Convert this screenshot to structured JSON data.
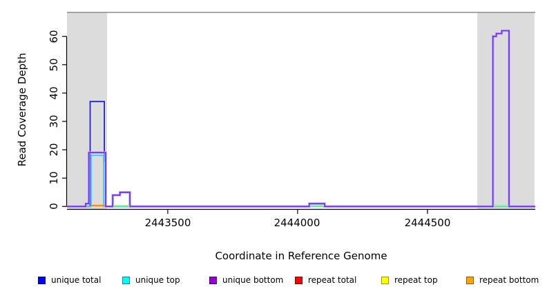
{
  "figure": {
    "background": "#FFFFFF"
  },
  "chart_data": {
    "type": "line",
    "subtype": "step-coverage",
    "title": "",
    "xlabel": "Coordinate in Reference Genome",
    "ylabel": "Read Coverage Depth",
    "xlim": [
      2443112,
      2444915
    ],
    "ylim": [
      0,
      69
    ],
    "grid": "off",
    "legend_position": "bottom",
    "x_ticks": [
      {
        "value": 2443500,
        "label": "2443500"
      },
      {
        "value": 2444000,
        "label": "2444000"
      },
      {
        "value": 2444500,
        "label": "2444500"
      }
    ],
    "y_ticks": [
      {
        "value": 0,
        "label": "0"
      },
      {
        "value": 10,
        "label": "10"
      },
      {
        "value": 20,
        "label": "20"
      },
      {
        "value": 30,
        "label": "30"
      },
      {
        "value": 40,
        "label": "40"
      },
      {
        "value": 50,
        "label": "50"
      },
      {
        "value": 60,
        "label": "60"
      }
    ],
    "shaded_regions": [
      {
        "x0": 2443112,
        "x1": 2443266,
        "color": "#DCDCDC"
      },
      {
        "x0": 2444692,
        "x1": 2444912,
        "color": "#DCDCDC"
      }
    ],
    "series": [
      {
        "name": "unique total",
        "color": "#2222DD",
        "width": 1.8,
        "points": [
          [
            2443112,
            0
          ],
          [
            2443201,
            0
          ],
          [
            2443201,
            37
          ],
          [
            2443256,
            37
          ],
          [
            2443256,
            16
          ],
          [
            2443261,
            16
          ],
          [
            2443261,
            0
          ],
          [
            2444045,
            0
          ],
          [
            2444045,
            1
          ],
          [
            2444104,
            1
          ],
          [
            2444104,
            0
          ],
          [
            2444753,
            0
          ],
          [
            2444753,
            60
          ],
          [
            2444766,
            60
          ],
          [
            2444766,
            61
          ],
          [
            2444787,
            61
          ],
          [
            2444787,
            62
          ],
          [
            2444813,
            62
          ],
          [
            2444813,
            0
          ],
          [
            2444915,
            0
          ]
        ]
      },
      {
        "name": "unique top",
        "color": "#35D2E8",
        "width": 1.8,
        "points": [
          [
            2443112,
            0
          ],
          [
            2443205,
            0
          ],
          [
            2443205,
            18
          ],
          [
            2443253,
            18
          ],
          [
            2443253,
            0
          ],
          [
            2444915,
            0
          ]
        ]
      },
      {
        "name": "unique bottom",
        "color": "#7330E8",
        "width": 1.8,
        "halo": "#C7B6F5",
        "points": [
          [
            2443112,
            0
          ],
          [
            2443184,
            0
          ],
          [
            2443184,
            1
          ],
          [
            2443196,
            1
          ],
          [
            2443196,
            19
          ],
          [
            2443261,
            19
          ],
          [
            2443261,
            0
          ],
          [
            2443288,
            0
          ],
          [
            2443288,
            4
          ],
          [
            2443316,
            4
          ],
          [
            2443316,
            5
          ],
          [
            2443354,
            5
          ],
          [
            2443354,
            0
          ],
          [
            2444045,
            0
          ],
          [
            2444045,
            1
          ],
          [
            2444104,
            1
          ],
          [
            2444104,
            0
          ],
          [
            2444752,
            0
          ],
          [
            2444752,
            60
          ],
          [
            2444765,
            60
          ],
          [
            2444765,
            61
          ],
          [
            2444786,
            61
          ],
          [
            2444786,
            62
          ],
          [
            2444814,
            62
          ],
          [
            2444814,
            0
          ],
          [
            2444915,
            0
          ]
        ]
      }
    ],
    "baseline_segments": [
      {
        "name": "repeat bottom baseline",
        "color": "#FF8C00",
        "width": 2.4,
        "y": 0.3,
        "x0": 2443205,
        "x1": 2443258
      },
      {
        "name": "overlap baseline",
        "color": "#90EE90",
        "width": 2.0,
        "y": 0.25,
        "x0": 2443290,
        "x1": 2443353
      },
      {
        "name": "overlap baseline",
        "color": "#90EE90",
        "width": 2.0,
        "y": 0.25,
        "x0": 2444047,
        "x1": 2444102
      },
      {
        "name": "overlap baseline",
        "color": "#90EE90",
        "width": 2.0,
        "y": 0.25,
        "x0": 2444754,
        "x1": 2444812
      }
    ],
    "axis_colors": {
      "axis": "#000000",
      "top_border": "#8A8A8A"
    },
    "legend": [
      {
        "label": "unique total",
        "fill": "#0000FF",
        "border": "#00008B"
      },
      {
        "label": "unique top",
        "fill": "#00FFFF",
        "border": "#008B8B"
      },
      {
        "label": "unique bottom",
        "fill": "#9400D3",
        "border": "#4B0082"
      },
      {
        "label": "repeat total",
        "fill": "#FF0000",
        "border": "#8B0000"
      },
      {
        "label": "repeat top",
        "fill": "#FFFF00",
        "border": "#999900"
      },
      {
        "label": "repeat bottom",
        "fill": "#FFA500",
        "border": "#8B5A00"
      }
    ]
  }
}
